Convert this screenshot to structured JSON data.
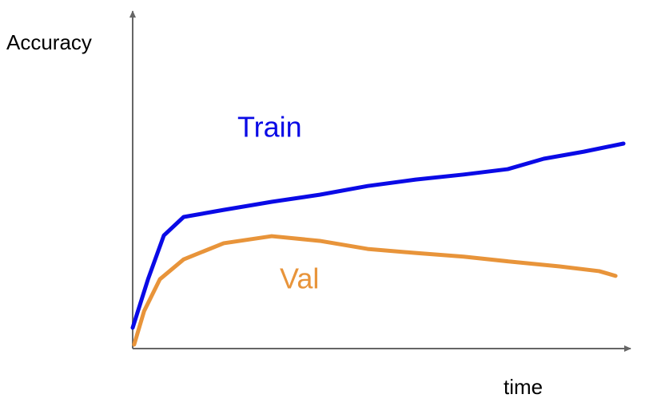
{
  "chart_data": {
    "type": "line",
    "y_label": "Accuracy",
    "x_label": "time",
    "xlim": [
      0,
      100
    ],
    "ylim": [
      0,
      100
    ],
    "series": [
      {
        "name": "Train",
        "color": "#0a0ae6",
        "x": [
          0,
          3.1,
          6.3,
          10.3,
          18.4,
          28.1,
          37.8,
          47.5,
          57.2,
          66.9,
          75.8,
          83.1,
          91.2,
          99.2
        ],
        "values": [
          6.2,
          20.6,
          33.6,
          39.1,
          41.2,
          43.6,
          45.7,
          48.3,
          50.2,
          51.7,
          53.3,
          56.4,
          58.5,
          60.9
        ]
      },
      {
        "name": "Val",
        "color": "#e8943a",
        "x": [
          0.3,
          2.3,
          5.5,
          10.3,
          18.4,
          28.1,
          37.8,
          47.5,
          57.2,
          66.9,
          76.6,
          86.3,
          94.3,
          97.6
        ],
        "values": [
          1.2,
          11.1,
          20.6,
          26.5,
          31.3,
          33.4,
          32.0,
          29.6,
          28.4,
          27.3,
          25.8,
          24.4,
          23.0,
          21.6
        ]
      }
    ]
  }
}
